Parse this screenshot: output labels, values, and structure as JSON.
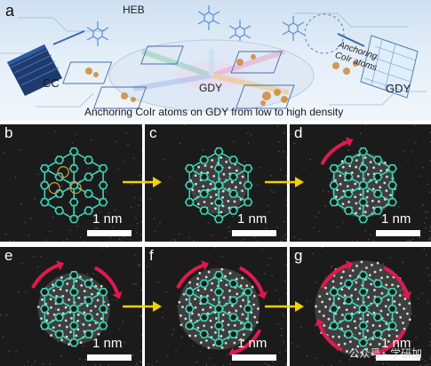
{
  "panel_a": {
    "letter": "a",
    "labels": {
      "heb": "HEB",
      "cc": "CC",
      "gdy_center": "GDY",
      "gdy_right": "GDY",
      "anchoring_1": "Anchoring",
      "anchoring_2": "CoIr atoms"
    },
    "caption": "Anchoring CoIr atoms on GDY from low to high density"
  },
  "stem_panels": [
    {
      "letter": "b",
      "scale": "1 nm"
    },
    {
      "letter": "c",
      "scale": "1 nm"
    },
    {
      "letter": "d",
      "scale": "1 nm"
    },
    {
      "letter": "e",
      "scale": "1 nm"
    },
    {
      "letter": "f",
      "scale": "1 nm"
    },
    {
      "letter": "g",
      "scale": "1 nm"
    }
  ],
  "watermark": "公众号 · 学研加",
  "colors": {
    "lattice": "#3fd3b4",
    "rotation_arrow": "#e0194f",
    "step_arrow": "#f2d200",
    "stem_background": "#1b1b1b"
  }
}
